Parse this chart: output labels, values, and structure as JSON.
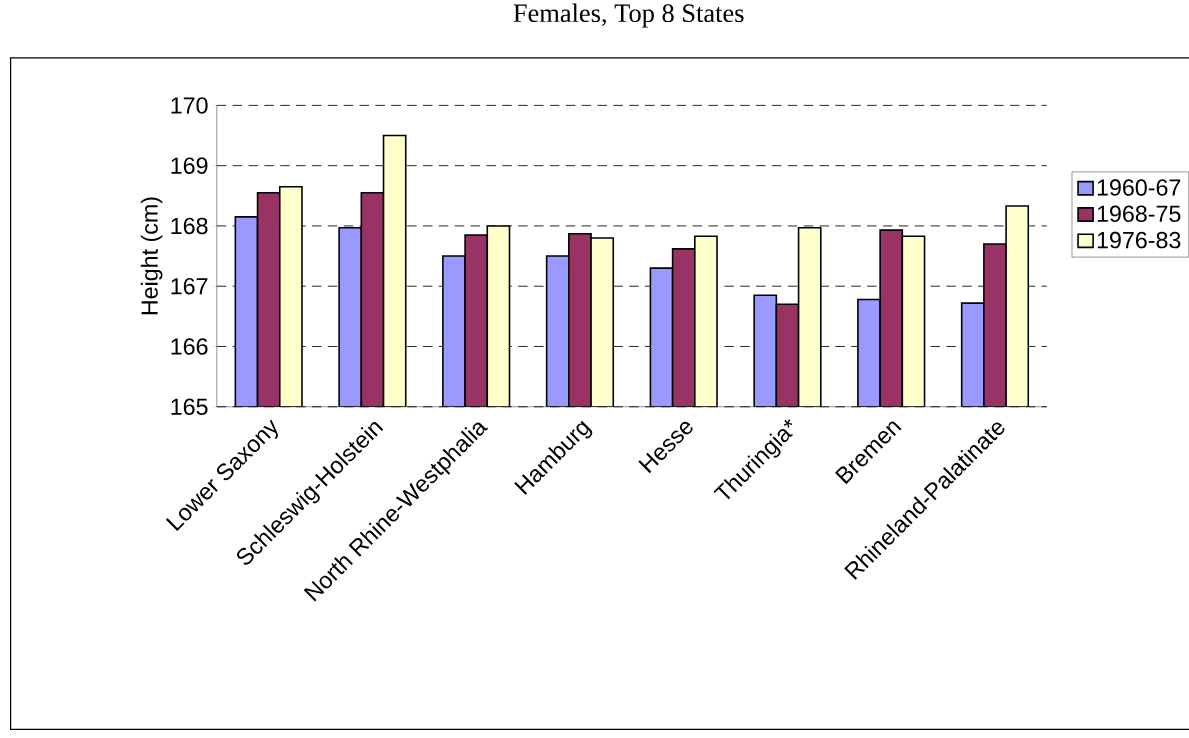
{
  "chart_data": {
    "type": "bar",
    "title": "Females, Top 8 States",
    "ylabel": "Height (cm)",
    "categories": [
      "Lower Saxony",
      "Schleswig-Holstein",
      "North Rhine-Westphalia",
      "Hamburg",
      "Hesse",
      "Thuringia*",
      "Bremen",
      "Rhineland-Palatinate"
    ],
    "series": [
      {
        "name": "1960-67",
        "color": "#9999ff",
        "values": [
          168.15,
          167.97,
          167.5,
          167.5,
          167.3,
          166.85,
          166.78,
          166.72
        ]
      },
      {
        "name": "1968-75",
        "color": "#993366",
        "values": [
          168.55,
          168.55,
          167.85,
          167.87,
          167.62,
          166.7,
          167.93,
          167.7
        ]
      },
      {
        "name": "1976-83",
        "color": "#ffffcc",
        "values": [
          168.65,
          169.5,
          168.0,
          167.8,
          167.83,
          167.97,
          167.83,
          168.33
        ]
      }
    ],
    "ylim": [
      165,
      170
    ],
    "yticks": [
      165,
      166,
      167,
      168,
      169,
      170
    ],
    "grid": "y",
    "legend": "right"
  }
}
